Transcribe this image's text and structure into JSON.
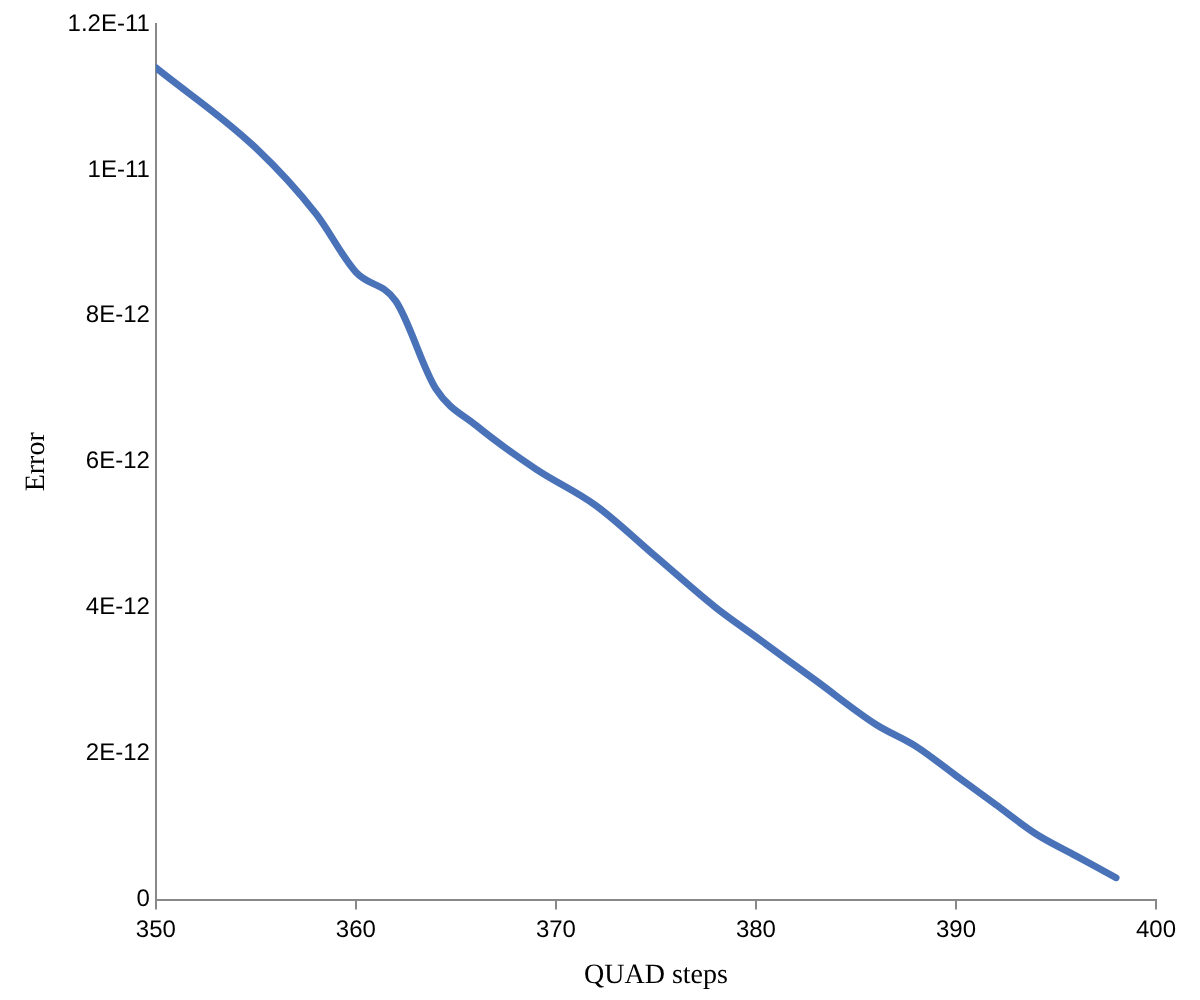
{
  "chart_data": {
    "type": "line",
    "xlabel": "QUAD steps",
    "ylabel": "Error",
    "x": [
      350,
      355,
      358,
      360,
      362,
      364,
      366,
      369,
      372,
      375,
      378,
      380,
      383,
      386,
      388,
      390,
      392,
      394,
      396,
      398
    ],
    "series": [
      {
        "color": "#4a72b8",
        "values": [
          1.14e-11,
          1.03e-11,
          9.4e-12,
          8.6e-12,
          8.2e-12,
          7e-12,
          6.5e-12,
          5.9e-12,
          5.4e-12,
          4.7e-12,
          4e-12,
          3.6e-12,
          3e-12,
          2.4e-12,
          2.1e-12,
          1.7e-12,
          1.3e-12,
          9e-13,
          6e-13,
          3e-13
        ]
      }
    ],
    "xlim": [
      350,
      400
    ],
    "xticks": [
      350,
      360,
      370,
      380,
      390,
      400
    ],
    "ylim": [
      0,
      1.2e-11
    ],
    "yticks": [
      0,
      {
        "value": 2e-12,
        "label": "2E-12"
      },
      {
        "value": 4e-12,
        "label": "4E-12"
      },
      {
        "value": 6e-12,
        "label": "6E-12"
      },
      {
        "value": 8e-12,
        "label": "8E-12"
      },
      {
        "value": 1e-11,
        "label": "1E-11"
      },
      {
        "value": 1.2e-11,
        "label": "1.2E-11"
      }
    ],
    "grid": false,
    "legend": false,
    "marker": "none",
    "line_style": "solid"
  }
}
